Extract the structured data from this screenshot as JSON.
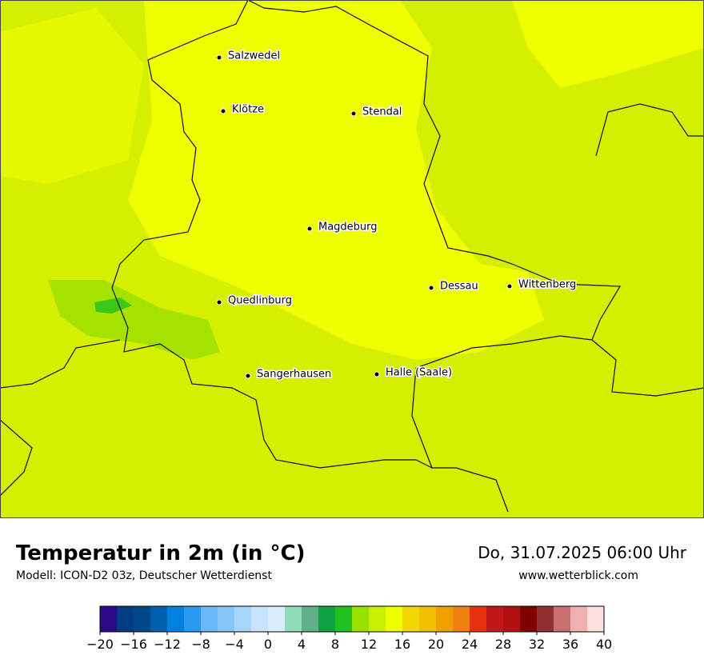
{
  "map": {
    "cities": [
      "Salzwedel",
      "Klötze",
      "Stendal",
      "Magdeburg",
      "Quedlinburg",
      "Dessau",
      "Wittenberg",
      "Sangerhausen",
      "Halle (Saale)"
    ]
  },
  "footer": {
    "title": "Temperatur in 2m (in °C)",
    "model": "Modell: ICON-D2 03z, Deutscher Wetterdienst",
    "date": "Do, 31.07.2025 06:00 Uhr",
    "website": "www.wetterblick.com"
  },
  "colorbar": {
    "lim": [
      -20,
      40
    ],
    "colors": [
      "#2e0a8a",
      "#003d80",
      "#00488a",
      "#0060b0",
      "#0080e0",
      "#2a9af0",
      "#6ab8f8",
      "#86c6f8",
      "#a8d6fa",
      "#c8e4fc",
      "#d8ecfe",
      "#90dcb8",
      "#62b08a",
      "#10a040",
      "#20c020",
      "#98e000",
      "#c8f000",
      "#f0ff00",
      "#f0d800",
      "#f0c000",
      "#f0a000",
      "#f08010",
      "#e83010",
      "#c01818",
      "#b01010",
      "#800000",
      "#903030",
      "#c87070",
      "#f0b0b0",
      "#ffe0e0"
    ],
    "ticks": [
      {
        "value": -20,
        "label": "−20"
      },
      {
        "value": -16,
        "label": "−16"
      },
      {
        "value": -12,
        "label": "−12"
      },
      {
        "value": -8,
        "label": "−8"
      },
      {
        "value": -4,
        "label": "−4"
      },
      0,
      4,
      8,
      12,
      16,
      20,
      24,
      28,
      32,
      36,
      40
    ]
  }
}
